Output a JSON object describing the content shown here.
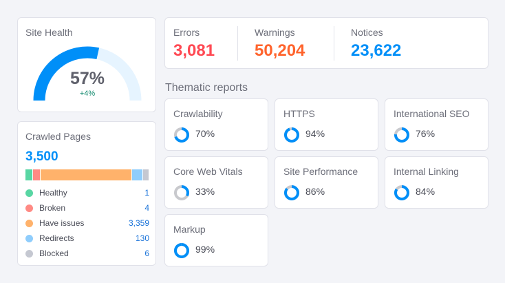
{
  "site_health": {
    "title": "Site Health",
    "value": "57%",
    "value_fraction": 0.57,
    "change": "+4%"
  },
  "crawled": {
    "title": "Crawled Pages",
    "total": "3,500",
    "items": [
      {
        "label": "Healthy",
        "value": "1",
        "color": "#58d6a3"
      },
      {
        "label": "Broken",
        "value": "4",
        "color": "#ff8a84"
      },
      {
        "label": "Have issues",
        "value": "3,359",
        "color": "#ffb26b"
      },
      {
        "label": "Redirects",
        "value": "130",
        "color": "#8fcdfc"
      },
      {
        "label": "Blocked",
        "value": "6",
        "color": "#c5c8d1"
      }
    ]
  },
  "summary": {
    "errors": {
      "label": "Errors",
      "value": "3,081",
      "color": "#ff4953"
    },
    "warnings": {
      "label": "Warnings",
      "value": "50,204",
      "color": "#ff642d"
    },
    "notices": {
      "label": "Notices",
      "value": "23,622",
      "color": "#008ff8"
    }
  },
  "thematic": {
    "title": "Thematic reports",
    "reports": [
      {
        "label": "Crawlability",
        "value": "70%",
        "pct": 70
      },
      {
        "label": "HTTPS",
        "value": "94%",
        "pct": 94
      },
      {
        "label": "International SEO",
        "value": "76%",
        "pct": 76
      },
      {
        "label": "Core Web Vitals",
        "value": "33%",
        "pct": 33
      },
      {
        "label": "Site Performance",
        "value": "86%",
        "pct": 86
      },
      {
        "label": "Internal Linking",
        "value": "84%",
        "pct": 84
      },
      {
        "label": "Markup",
        "value": "99%",
        "pct": 99
      }
    ]
  },
  "colors": {
    "accent": "#008ff8",
    "gauge_track": "#e6f4ff",
    "donut_track": "#c8c9cd"
  }
}
